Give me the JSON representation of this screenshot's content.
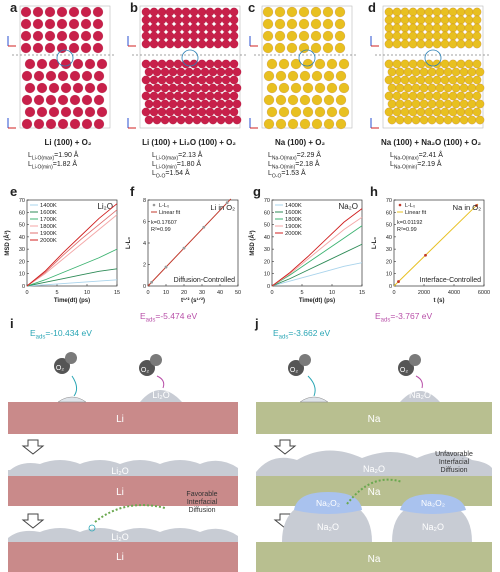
{
  "panel_labels": {
    "a": "a",
    "b": "b",
    "c": "c",
    "d": "d",
    "e": "e",
    "f": "f",
    "g": "g",
    "h": "h",
    "i": "i",
    "j": "j"
  },
  "structures": [
    {
      "title": "Li (100) + O₂",
      "color": "#c8204a",
      "lines": [
        [
          "L",
          "Li-O(max)",
          "=1.90 Å"
        ],
        [
          "L",
          "Li-O(min)",
          "=1.82 Å"
        ]
      ]
    },
    {
      "title": "Li (100) + Li₂O (100) + O₂",
      "color": "#c8204a",
      "lines": [
        [
          "L",
          "Li-O(max)",
          "=2.13 Å"
        ],
        [
          "L",
          "Li-O(min)",
          "=1.80 Å"
        ],
        [
          "L",
          "O-O",
          "=1.54 Å"
        ]
      ]
    },
    {
      "title": "Na (100) + O₂",
      "color": "#e8c020",
      "lines": [
        [
          "L",
          "Na-O(max)",
          "=2.29 Å"
        ],
        [
          "L",
          "Na-O(min)",
          "=2.18 Å"
        ],
        [
          "L",
          "O-O",
          "=1.53 Å"
        ]
      ]
    },
    {
      "title": "Na (100) + Na₂O (100) + O₂",
      "color": "#e8c020",
      "lines": [
        [
          "L",
          "Na-O(max)",
          "=2.41 Å"
        ],
        [
          "L",
          "Na-O(min)",
          "=2.19 Å"
        ]
      ]
    }
  ],
  "colors": {
    "li_atom": "#c8204a",
    "na_atom": "#e8c020",
    "li_slab": "#c98a8a",
    "na_slab": "#b8bf90",
    "li_fit": "#c0392b",
    "na_fit": "#e8c020",
    "eads_i": "#2aa6b5",
    "eads_j": "#b84fa8"
  },
  "eads": {
    "i_left": "E",
    "i_left_sub": "ads",
    "i_left_val": "=-10.434 eV",
    "i_right": "E",
    "i_right_sub": "ads",
    "i_right_val": "=-5.474 eV",
    "j_left": "E",
    "j_left_sub": "ads",
    "j_left_val": "=-3.662 eV",
    "j_right": "E",
    "j_right_sub": "ads",
    "j_right_val": "=-3.767 eV"
  },
  "scene_labels": {
    "o2": "O₂",
    "li": "Li",
    "li2o": "Li₂O",
    "na": "Na",
    "na2o": "Na₂O",
    "na2o2": "Na₂O₂",
    "li_diff": [
      "Favorable",
      "Interfacial",
      "Diffusion"
    ],
    "na_diff": [
      "Unfavorable",
      "Interfacial",
      "Diffusion"
    ]
  },
  "chart_data": [
    {
      "id": "e",
      "type": "line",
      "title": "Li₂O",
      "xlabel": "Time(dt) (ps)",
      "ylabel": "MSD (Å²)",
      "xlim": [
        0,
        15
      ],
      "ylim": [
        0,
        70
      ],
      "xticks": [
        0,
        5,
        10,
        15
      ],
      "yticks": [
        0,
        10,
        20,
        30,
        40,
        50,
        60,
        70
      ],
      "series": [
        {
          "name": "1400K",
          "color": "#aad4ec",
          "x": [
            0,
            3,
            6,
            9,
            12,
            15
          ],
          "y": [
            0,
            1,
            2,
            3,
            4,
            5
          ]
        },
        {
          "name": "1600K",
          "color": "#2e8b57",
          "x": [
            0,
            3,
            6,
            9,
            12,
            15
          ],
          "y": [
            0,
            3,
            6,
            9,
            12,
            14
          ]
        },
        {
          "name": "1700K",
          "color": "#3cb371",
          "x": [
            0,
            3,
            6,
            9,
            12,
            15
          ],
          "y": [
            0,
            5,
            11,
            17,
            23,
            30
          ]
        },
        {
          "name": "1800K",
          "color": "#f4a6a6",
          "x": [
            0,
            3,
            6,
            9,
            12,
            15
          ],
          "y": [
            0,
            10,
            22,
            34,
            46,
            58
          ]
        },
        {
          "name": "1900K",
          "color": "#e07070",
          "x": [
            0,
            3,
            6,
            9,
            12,
            15
          ],
          "y": [
            0,
            11,
            25,
            38,
            50,
            62
          ]
        },
        {
          "name": "2000K",
          "color": "#d01f1f",
          "x": [
            0,
            3,
            6,
            9,
            12,
            15
          ],
          "y": [
            0,
            12,
            27,
            41,
            55,
            67
          ]
        }
      ]
    },
    {
      "id": "f",
      "type": "scatter",
      "title": "Li in O₂",
      "xlabel": "t¹ᐟ² (s¹ᐟ²)",
      "ylabel": "L-L₀",
      "xlim": [
        0,
        50
      ],
      "ylim": [
        0,
        8
      ],
      "xticks": [
        0,
        10,
        20,
        30,
        40,
        50
      ],
      "yticks": [
        0,
        2,
        4,
        6,
        8
      ],
      "series": [
        {
          "name": "L-L₀",
          "color": "#999999",
          "x": [
            2,
            10,
            20,
            31,
            44
          ],
          "y": [
            0.35,
            1.76,
            3.52,
            5.46,
            7.75
          ]
        },
        {
          "name": "Linear fit",
          "color": "#c0392b",
          "x": [
            0,
            46
          ],
          "y": [
            0,
            8.1
          ]
        }
      ],
      "annotations": [
        "k=0.17607",
        "R²=0.99",
        "Diffusion-Controlled"
      ]
    },
    {
      "id": "g",
      "type": "line",
      "title": "Na₂O",
      "xlabel": "Time(dt) (ps)",
      "ylabel": "MSD (Å²)",
      "xlim": [
        0,
        15
      ],
      "ylim": [
        0,
        70
      ],
      "xticks": [
        0,
        5,
        10,
        15
      ],
      "yticks": [
        0,
        10,
        20,
        30,
        40,
        50,
        60,
        70
      ],
      "series": [
        {
          "name": "1400K",
          "color": "#aad4ec",
          "x": [
            0,
            3,
            6,
            9,
            12,
            15
          ],
          "y": [
            0,
            4,
            8,
            12,
            16,
            19
          ]
        },
        {
          "name": "1600K",
          "color": "#2e8b57",
          "x": [
            0,
            3,
            6,
            9,
            12,
            15
          ],
          "y": [
            0,
            6,
            13,
            20,
            27,
            34
          ]
        },
        {
          "name": "1800K",
          "color": "#3cb371",
          "x": [
            0,
            3,
            6,
            9,
            12,
            15
          ],
          "y": [
            0,
            9,
            19,
            29,
            39,
            49
          ]
        },
        {
          "name": "1900K",
          "color": "#f4a6a6",
          "x": [
            0,
            3,
            6,
            9,
            12,
            15
          ],
          "y": [
            0,
            10,
            22,
            34,
            46,
            56
          ]
        },
        {
          "name": "2000K",
          "color": "#d01f1f",
          "x": [
            0,
            3,
            6,
            9,
            12,
            15
          ],
          "y": [
            0,
            11,
            24,
            38,
            52,
            63
          ]
        }
      ]
    },
    {
      "id": "h",
      "type": "scatter",
      "title": "Na in O₂",
      "xlabel": "t (s)",
      "ylabel": "L-L₀",
      "xlim": [
        0,
        6000
      ],
      "ylim": [
        0,
        70
      ],
      "xticks": [
        0,
        2000,
        4000,
        6000
      ],
      "yticks": [
        0,
        10,
        20,
        30,
        40,
        50,
        60,
        70
      ],
      "series": [
        {
          "name": "L-L₀",
          "color": "#c0392b",
          "x": [
            300,
            2100,
            5500
          ],
          "y": [
            3.6,
            25,
            65.5
          ]
        },
        {
          "name": "Linear fit",
          "color": "#e8c020",
          "x": [
            0,
            5600
          ],
          "y": [
            0,
            66.8
          ]
        }
      ],
      "annotations": [
        "k=0.01192",
        "R²=0.99",
        "Interface-Controlled"
      ]
    }
  ]
}
